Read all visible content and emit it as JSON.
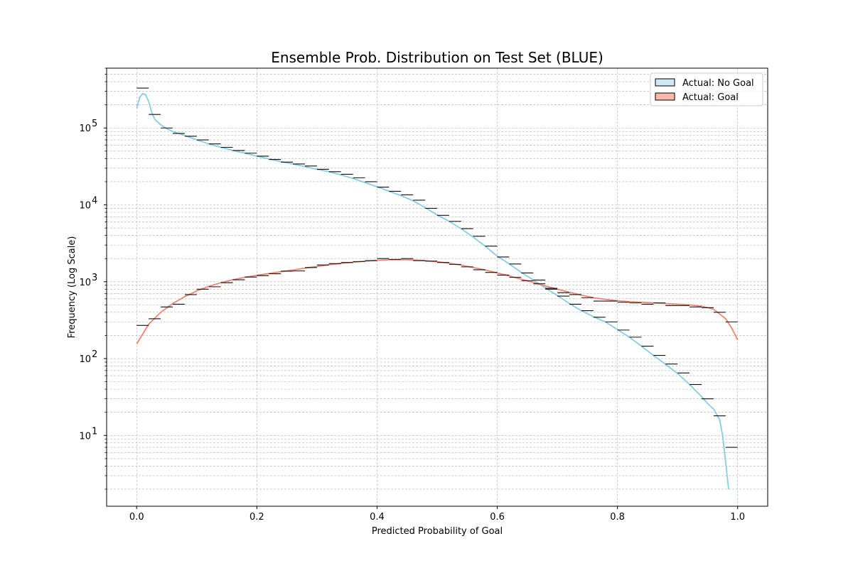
{
  "chart_data": {
    "type": "line",
    "title": "Ensemble Prob. Distribution on Test Set (BLUE)",
    "xlabel": "Predicted Probability of Goal",
    "ylabel": "Frequency (Log Scale)",
    "xlim": [
      -0.05,
      1.05
    ],
    "ylim": [
      1.2,
      600000
    ],
    "yscale": "log",
    "grid": true,
    "legend_position": "top-right",
    "x_ticks": [
      0.0,
      0.2,
      0.4,
      0.6,
      0.8,
      1.0
    ],
    "x_tick_labels": [
      "0.0",
      "0.2",
      "0.4",
      "0.6",
      "0.8",
      "1.0"
    ],
    "y_ticks": [
      10,
      100,
      1000,
      10000,
      100000
    ],
    "y_tick_labels": [
      {
        "base": "10",
        "exp": "1"
      },
      {
        "base": "10",
        "exp": "2"
      },
      {
        "base": "10",
        "exp": "3"
      },
      {
        "base": "10",
        "exp": "4"
      },
      {
        "base": "10",
        "exp": "5"
      }
    ],
    "bin_width": 0.02,
    "series": [
      {
        "name": "Actual: No Goal",
        "fill_color": "#cce9f5",
        "line_color": "#87cde3",
        "bin_starts": [
          0.0,
          0.02,
          0.04,
          0.06,
          0.08,
          0.1,
          0.12,
          0.14,
          0.16,
          0.18,
          0.2,
          0.22,
          0.24,
          0.26,
          0.28,
          0.3,
          0.32,
          0.34,
          0.36,
          0.38,
          0.4,
          0.42,
          0.44,
          0.46,
          0.48,
          0.5,
          0.52,
          0.54,
          0.56,
          0.58,
          0.6,
          0.62,
          0.64,
          0.66,
          0.68,
          0.7,
          0.72,
          0.74,
          0.76,
          0.78,
          0.8,
          0.82,
          0.84,
          0.86,
          0.88,
          0.9,
          0.92,
          0.94,
          0.96,
          0.98
        ],
        "bin_counts": [
          330000,
          150000,
          100000,
          85000,
          78000,
          70000,
          62000,
          56000,
          51000,
          47000,
          43000,
          39000,
          36000,
          34000,
          32000,
          29000,
          27000,
          25000,
          22500,
          20000,
          17000,
          15000,
          13500,
          11500,
          9000,
          7300,
          6100,
          4900,
          3900,
          2900,
          2100,
          1700,
          1300,
          1050,
          800,
          650,
          510,
          420,
          345,
          300,
          235,
          190,
          145,
          110,
          85,
          65,
          46,
          30,
          18,
          7
        ],
        "kde_x": [
          0.0,
          0.005,
          0.01,
          0.015,
          0.02,
          0.025,
          0.03,
          0.04,
          0.05,
          0.06,
          0.08,
          0.1,
          0.12,
          0.14,
          0.16,
          0.18,
          0.2,
          0.22,
          0.24,
          0.26,
          0.28,
          0.3,
          0.32,
          0.34,
          0.36,
          0.38,
          0.4,
          0.42,
          0.44,
          0.46,
          0.48,
          0.5,
          0.52,
          0.54,
          0.56,
          0.58,
          0.6,
          0.62,
          0.64,
          0.66,
          0.68,
          0.7,
          0.72,
          0.74,
          0.76,
          0.78,
          0.8,
          0.82,
          0.84,
          0.86,
          0.88,
          0.9,
          0.92,
          0.94,
          0.95,
          0.96,
          0.97,
          0.975,
          0.98,
          0.985
        ],
        "kde_y": [
          180000,
          250000,
          280000,
          270000,
          220000,
          160000,
          130000,
          110000,
          98000,
          90000,
          80000,
          70000,
          62000,
          56000,
          51000,
          47000,
          43000,
          39500,
          36500,
          34000,
          31500,
          29000,
          27000,
          24500,
          22000,
          19500,
          17200,
          15000,
          13200,
          11300,
          9200,
          7400,
          6100,
          4900,
          3800,
          2900,
          2150,
          1700,
          1320,
          1050,
          830,
          660,
          520,
          420,
          350,
          300,
          238,
          190,
          145,
          110,
          84,
          64,
          46,
          32,
          26,
          22,
          16,
          10,
          4.5,
          2.0
        ]
      },
      {
        "name": "Actual: Goal",
        "fill_color": "#f6b9aa",
        "line_color": "#ee8575",
        "bin_starts": [
          0.0,
          0.02,
          0.04,
          0.06,
          0.08,
          0.1,
          0.12,
          0.14,
          0.16,
          0.18,
          0.2,
          0.22,
          0.24,
          0.26,
          0.28,
          0.3,
          0.32,
          0.34,
          0.36,
          0.38,
          0.4,
          0.42,
          0.44,
          0.46,
          0.48,
          0.5,
          0.52,
          0.54,
          0.56,
          0.58,
          0.6,
          0.62,
          0.64,
          0.66,
          0.68,
          0.7,
          0.72,
          0.74,
          0.76,
          0.78,
          0.8,
          0.82,
          0.84,
          0.86,
          0.88,
          0.9,
          0.92,
          0.94,
          0.96,
          0.98
        ],
        "bin_counts": [
          270,
          330,
          470,
          510,
          680,
          800,
          860,
          970,
          1060,
          1150,
          1200,
          1270,
          1370,
          1380,
          1530,
          1650,
          1720,
          1780,
          1830,
          1880,
          2000,
          1950,
          2000,
          1880,
          1850,
          1780,
          1680,
          1560,
          1430,
          1320,
          1220,
          1140,
          1030,
          940,
          820,
          720,
          680,
          620,
          560,
          560,
          540,
          530,
          510,
          530,
          490,
          490,
          470,
          460,
          400,
          300
        ],
        "kde_x": [
          0.0,
          0.02,
          0.04,
          0.06,
          0.08,
          0.1,
          0.12,
          0.14,
          0.16,
          0.18,
          0.2,
          0.22,
          0.24,
          0.26,
          0.28,
          0.3,
          0.32,
          0.34,
          0.36,
          0.38,
          0.4,
          0.42,
          0.44,
          0.46,
          0.48,
          0.5,
          0.52,
          0.54,
          0.56,
          0.58,
          0.6,
          0.62,
          0.64,
          0.66,
          0.68,
          0.7,
          0.72,
          0.74,
          0.76,
          0.78,
          0.8,
          0.82,
          0.84,
          0.86,
          0.88,
          0.9,
          0.92,
          0.94,
          0.96,
          0.98,
          0.99,
          1.0
        ],
        "kde_y": [
          155,
          280,
          400,
          520,
          640,
          760,
          870,
          970,
          1060,
          1140,
          1210,
          1280,
          1350,
          1420,
          1500,
          1580,
          1660,
          1730,
          1790,
          1850,
          1900,
          1930,
          1940,
          1920,
          1880,
          1820,
          1740,
          1640,
          1530,
          1420,
          1300,
          1190,
          1080,
          980,
          880,
          800,
          730,
          670,
          620,
          590,
          565,
          550,
          540,
          530,
          520,
          510,
          500,
          480,
          440,
          330,
          250,
          175
        ]
      }
    ]
  }
}
